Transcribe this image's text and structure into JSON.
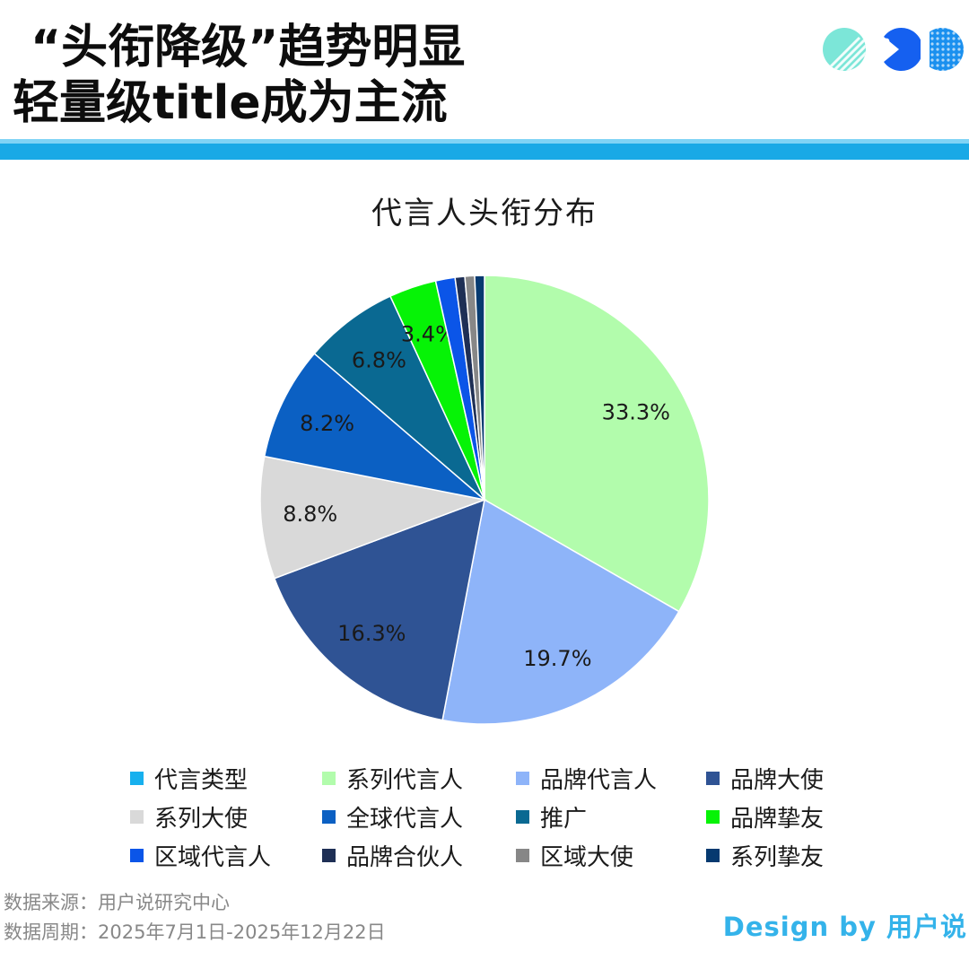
{
  "header": {
    "title_line1": "“头衔降级”趋势明显",
    "title_line2": "轻量级title成为主流"
  },
  "footer": {
    "source": "数据来源：用户说研究中心",
    "period": "数据周期：2025年7月1日-2025年12月22日",
    "credit": "Design by 用户说"
  },
  "chart_data": {
    "type": "pie",
    "title": "代言人头衔分布",
    "legend_position": "bottom",
    "legend": [
      {
        "label": "代言类型",
        "color": "#17b0ee"
      },
      {
        "label": "系列代言人",
        "color": "#b2fcac"
      },
      {
        "label": "品牌代言人",
        "color": "#8eb4f9"
      },
      {
        "label": "品牌大使",
        "color": "#2f5394"
      },
      {
        "label": "系列大使",
        "color": "#d9d9d9"
      },
      {
        "label": "全球代言人",
        "color": "#0b60c3"
      },
      {
        "label": "推广",
        "color": "#0a6992"
      },
      {
        "label": "品牌挚友",
        "color": "#06f306"
      },
      {
        "label": "区域代言人",
        "color": "#0b55e8"
      },
      {
        "label": "品牌合伙人",
        "color": "#1e2f55"
      },
      {
        "label": "区域大使",
        "color": "#878787"
      },
      {
        "label": "系列挚友",
        "color": "#063a70"
      }
    ],
    "slices": [
      {
        "label": "系列代言人",
        "value": 33.3,
        "display": "33.3%",
        "color": "#b2fcac"
      },
      {
        "label": "品牌代言人",
        "value": 19.7,
        "display": "19.7%",
        "color": "#8eb4f9"
      },
      {
        "label": "品牌大使",
        "value": 16.3,
        "display": "16.3%",
        "color": "#2f5394"
      },
      {
        "label": "系列大使",
        "value": 8.8,
        "display": "8.8%",
        "color": "#d9d9d9"
      },
      {
        "label": "全球代言人",
        "value": 8.2,
        "display": "8.2%",
        "color": "#0b60c3"
      },
      {
        "label": "推广",
        "value": 6.8,
        "display": "6.8%",
        "color": "#0a6992"
      },
      {
        "label": "品牌挚友",
        "value": 3.4,
        "display": "3.4%",
        "color": "#06f306"
      },
      {
        "label": "区域代言人",
        "value": 1.4,
        "display": "",
        "color": "#0b55e8"
      },
      {
        "label": "品牌合伙人",
        "value": 0.7,
        "display": "",
        "color": "#1e2f55"
      },
      {
        "label": "区域大使",
        "value": 0.7,
        "display": "",
        "color": "#878787"
      },
      {
        "label": "系列挚友",
        "value": 0.7,
        "display": "",
        "color": "#063a70"
      }
    ]
  }
}
